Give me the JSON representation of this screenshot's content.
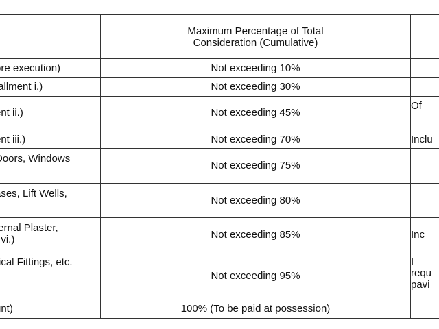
{
  "header": {
    "stage": "",
    "percentage_line1": "Maximum Percentage of Total",
    "percentage_line2": "Consideration (Cumulative)",
    "remarks": ""
  },
  "rows": [
    {
      "stage": [
        "ore execution)"
      ],
      "percentage": "Not exceeding 10%",
      "note": [
        ""
      ]
    },
    {
      "stage": [
        "tallment i.)"
      ],
      "percentage": "Not exceeding 30%",
      "note": [
        ""
      ]
    },
    {
      "stage": [
        "ent ii.)"
      ],
      "percentage": "Not exceeding 45%",
      "note": [
        "Of"
      ]
    },
    {
      "stage": [
        "ent iii.)"
      ],
      "percentage": "Not exceeding 70%",
      "note": [
        "Inclu"
      ]
    },
    {
      "stage": [
        "Doors, Windows",
        ""
      ],
      "percentage": "Not exceeding 75%",
      "note": [
        ""
      ]
    },
    {
      "stage": [
        "ases, Lift Wells,",
        ""
      ],
      "percentage": "Not exceeding 80%",
      "note": [
        ""
      ]
    },
    {
      "stage": [
        "ternal Plaster,",
        "t vi.)"
      ],
      "percentage": "Not exceeding 85%",
      "note": [
        "Inc"
      ]
    },
    {
      "stage": [
        "rical Fittings, etc.",
        ""
      ],
      "percentage": "Not exceeding 95%",
      "note": [
        "I",
        "requ",
        "pavi"
      ]
    },
    {
      "stage": [
        "unt)"
      ],
      "percentage": "100% (To be paid at possession)",
      "note": [
        ""
      ]
    }
  ]
}
